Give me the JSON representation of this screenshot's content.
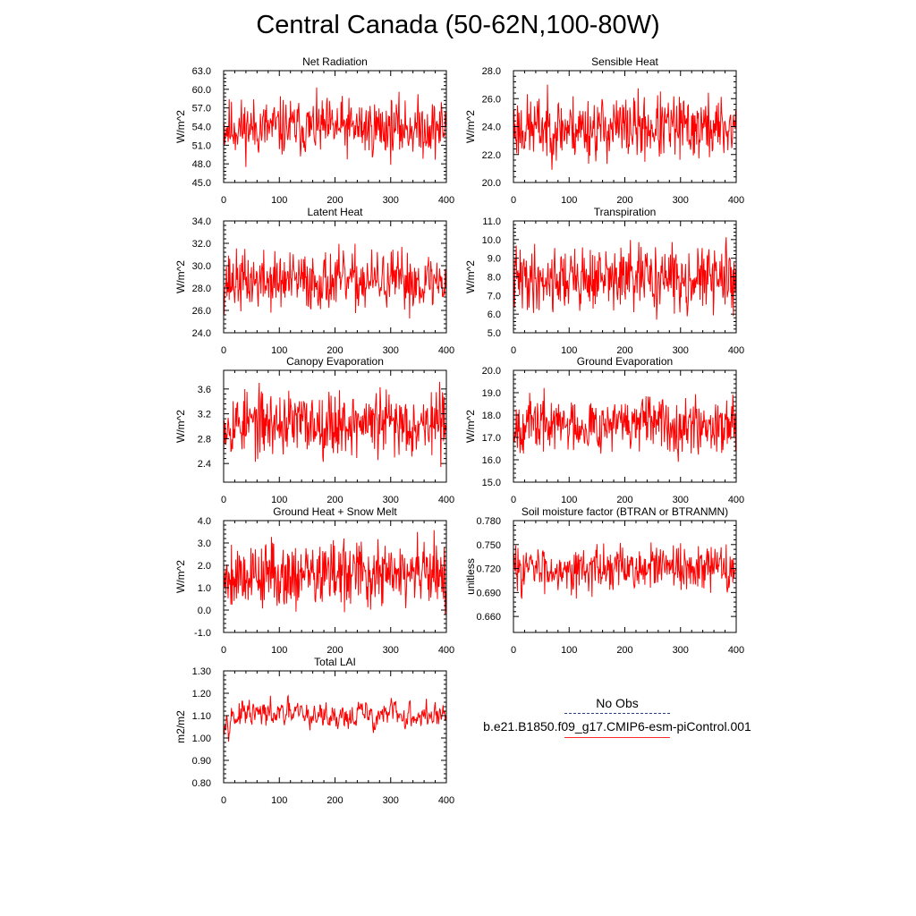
{
  "page_title": "Central Canada (50-62N,100-80W)",
  "legend": {
    "obs_label": "No Obs",
    "model_label": "b.e21.B1850.f09_g17.CMIP6-esm-piControl.001",
    "obs_color": "#2c3e8c",
    "model_color": "#ff0000"
  },
  "chart_data": [
    {
      "type": "line",
      "title": "Net Radiation",
      "ylabel": "W/m^2",
      "xlim": [
        0,
        400
      ],
      "ylim": [
        45.0,
        63.0
      ],
      "xticks": [
        0,
        100,
        200,
        300,
        400
      ],
      "yticks": [
        45.0,
        48.0,
        51.0,
        54.0,
        57.0,
        60.0,
        63.0
      ],
      "ytick_labels": [
        "45.0",
        "48.0",
        "51.0",
        "54.0",
        "57.0",
        "60.0",
        "63.0"
      ],
      "series": [
        {
          "color": "#ff0000",
          "n": 400,
          "mean": 53.8,
          "amp": 2.3,
          "min": 47.0,
          "max": 60.3,
          "seed": 11
        }
      ]
    },
    {
      "type": "line",
      "title": "Sensible Heat",
      "ylabel": "W/m^2",
      "xlim": [
        0,
        400
      ],
      "ylim": [
        20.0,
        28.0
      ],
      "xticks": [
        0,
        100,
        200,
        300,
        400
      ],
      "yticks": [
        20.0,
        22.0,
        24.0,
        26.0,
        28.0
      ],
      "ytick_labels": [
        "20.0",
        "22.0",
        "24.0",
        "26.0",
        "28.0"
      ],
      "series": [
        {
          "color": "#ff0000",
          "n": 400,
          "mean": 23.9,
          "amp": 1.15,
          "min": 20.3,
          "max": 27.0,
          "seed": 23
        }
      ]
    },
    {
      "type": "line",
      "title": "Latent Heat",
      "ylabel": "W/m^2",
      "xlim": [
        0,
        400
      ],
      "ylim": [
        24.0,
        34.0
      ],
      "xticks": [
        0,
        100,
        200,
        300,
        400
      ],
      "yticks": [
        24.0,
        26.0,
        28.0,
        30.0,
        32.0,
        34.0
      ],
      "ytick_labels": [
        "24.0",
        "26.0",
        "28.0",
        "30.0",
        "32.0",
        "34.0"
      ],
      "series": [
        {
          "color": "#ff0000",
          "n": 400,
          "mean": 28.6,
          "amp": 1.3,
          "min": 24.3,
          "max": 32.4,
          "seed": 37
        }
      ]
    },
    {
      "type": "line",
      "title": "Transpiration",
      "ylabel": "W/m^2",
      "xlim": [
        0,
        400
      ],
      "ylim": [
        5.0,
        11.0
      ],
      "xticks": [
        0,
        100,
        200,
        300,
        400
      ],
      "yticks": [
        5.0,
        6.0,
        7.0,
        8.0,
        9.0,
        10.0,
        11.0
      ],
      "ytick_labels": [
        "5.0",
        "6.0",
        "7.0",
        "8.0",
        "9.0",
        "10.0",
        "11.0"
      ],
      "series": [
        {
          "color": "#ff0000",
          "n": 400,
          "mean": 7.9,
          "amp": 0.85,
          "min": 5.0,
          "max": 10.3,
          "seed": 41
        }
      ]
    },
    {
      "type": "line",
      "title": "Canopy Evaporation",
      "ylabel": "W/m^2",
      "xlim": [
        0,
        400
      ],
      "ylim": [
        2.1,
        3.9
      ],
      "xticks": [
        0,
        100,
        200,
        300,
        400
      ],
      "yticks": [
        2.4,
        2.8,
        3.2,
        3.6
      ],
      "ytick_labels": [
        "2.4",
        "2.8",
        "3.2",
        "3.6"
      ],
      "series": [
        {
          "color": "#ff0000",
          "n": 400,
          "mean": 3.05,
          "amp": 0.26,
          "min": 2.3,
          "max": 3.72,
          "seed": 53
        }
      ]
    },
    {
      "type": "line",
      "title": "Ground Evaporation",
      "ylabel": "W/m^2",
      "xlim": [
        0,
        400
      ],
      "ylim": [
        15.0,
        20.0
      ],
      "xticks": [
        0,
        100,
        200,
        300,
        400
      ],
      "yticks": [
        15.0,
        16.0,
        17.0,
        18.0,
        19.0,
        20.0
      ],
      "ytick_labels": [
        "15.0",
        "16.0",
        "17.0",
        "18.0",
        "19.0",
        "20.0"
      ],
      "series": [
        {
          "color": "#ff0000",
          "n": 400,
          "mean": 17.6,
          "amp": 0.6,
          "min": 15.6,
          "max": 19.3,
          "seed": 67
        }
      ]
    },
    {
      "type": "line",
      "title": "Ground Heat + Snow Melt",
      "ylabel": "W/m^2",
      "xlim": [
        0,
        400
      ],
      "ylim": [
        -1.0,
        4.0
      ],
      "xticks": [
        0,
        100,
        200,
        300,
        400
      ],
      "yticks": [
        -1.0,
        0.0,
        1.0,
        2.0,
        3.0,
        4.0
      ],
      "ytick_labels": [
        "-1.0",
        "0.0",
        "1.0",
        "2.0",
        "3.0",
        "4.0"
      ],
      "series": [
        {
          "color": "#ff0000",
          "n": 400,
          "mean": 1.6,
          "amp": 0.75,
          "min": -0.5,
          "max": 3.7,
          "seed": 79
        }
      ]
    },
    {
      "type": "line",
      "title": "Soil moisture factor (BTRAN or BTRANMN)",
      "ylabel": "unitless",
      "xlim": [
        0,
        400
      ],
      "ylim": [
        0.64,
        0.78
      ],
      "xticks": [
        0,
        100,
        200,
        300,
        400
      ],
      "yticks": [
        0.66,
        0.69,
        0.72,
        0.75,
        0.78
      ],
      "ytick_labels": [
        "0.660",
        "0.690",
        "0.720",
        "0.750",
        "0.780"
      ],
      "series": [
        {
          "color": "#ff0000",
          "n": 400,
          "mean": 0.72,
          "amp": 0.014,
          "min": 0.655,
          "max": 0.776,
          "seed": 83
        }
      ]
    },
    {
      "type": "line",
      "title": "Total LAI",
      "ylabel": "m2/m2",
      "xlim": [
        0,
        400
      ],
      "ylim": [
        0.8,
        1.3
      ],
      "xticks": [
        0,
        100,
        200,
        300,
        400
      ],
      "yticks": [
        0.8,
        0.9,
        1.0,
        1.1,
        1.2,
        1.3
      ],
      "ytick_labels": [
        "0.80",
        "0.90",
        "1.00",
        "1.10",
        "1.20",
        "1.30"
      ],
      "series": [
        {
          "color": "#ff0000",
          "n": 400,
          "mean": 1.1,
          "amp": 0.045,
          "min": 0.9,
          "max": 1.24,
          "seed": 97,
          "smooth": true
        }
      ]
    }
  ]
}
